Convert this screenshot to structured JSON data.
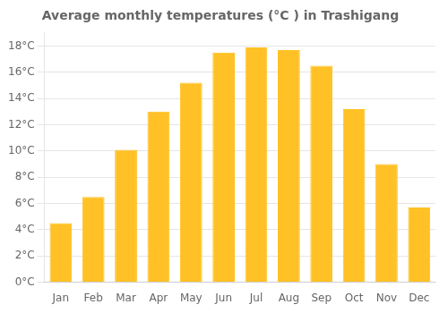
{
  "chart_data": {
    "type": "bar",
    "title": "Average monthly temperatures (°C ) in Trashigang",
    "categories": [
      "Jan",
      "Feb",
      "Mar",
      "Apr",
      "May",
      "Jun",
      "Jul",
      "Aug",
      "Sep",
      "Oct",
      "Nov",
      "Dec"
    ],
    "values": [
      4.5,
      6.5,
      10.1,
      13.0,
      15.2,
      17.5,
      17.9,
      17.7,
      16.5,
      13.2,
      9.0,
      5.7
    ],
    "color": "#FFC125",
    "ylim": [
      0,
      19
    ],
    "yticks": [
      {
        "value": 0,
        "label": "0°C"
      },
      {
        "value": 2,
        "label": "2°C"
      },
      {
        "value": 4,
        "label": "4°C"
      },
      {
        "value": 6,
        "label": "6°C"
      },
      {
        "value": 8,
        "label": "8°C"
      },
      {
        "value": 10,
        "label": "10°C"
      },
      {
        "value": 12,
        "label": "12°C"
      },
      {
        "value": 14,
        "label": "14°C"
      },
      {
        "value": 16,
        "label": "16°C"
      },
      {
        "value": 18,
        "label": "18°C"
      }
    ],
    "grid": true
  }
}
